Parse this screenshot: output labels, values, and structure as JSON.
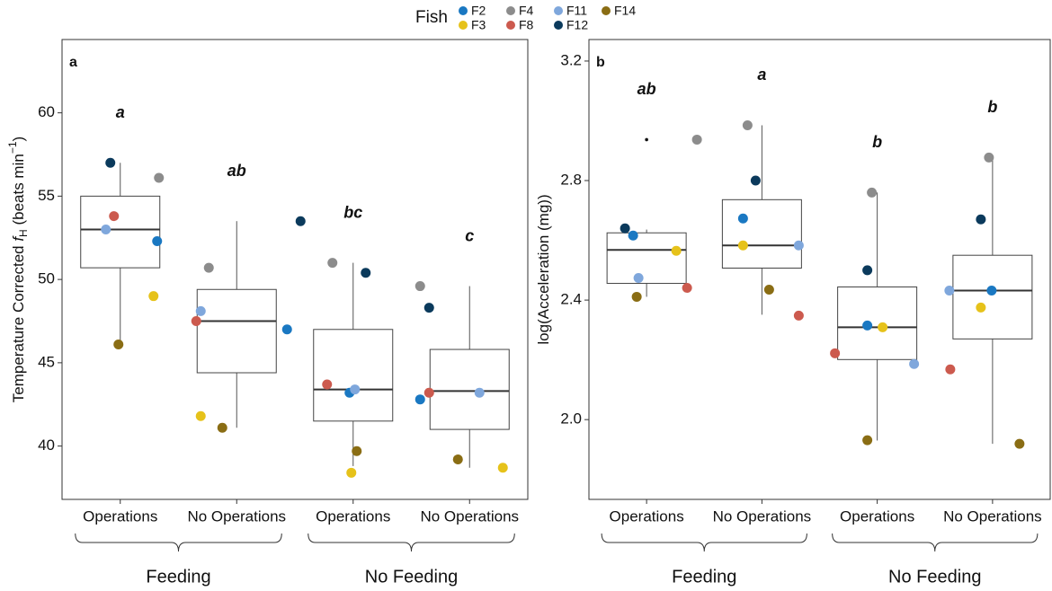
{
  "legend": {
    "title": "Fish"
  },
  "chart_data": [
    {
      "type": "box",
      "panel": "a",
      "ylabel": [
        "Temperature Corrected ",
        "f",
        "H",
        " (beats min",
        "−1",
        ")"
      ],
      "categories": [
        "Operations",
        "No Operations",
        "Operations",
        "No Operations"
      ],
      "groups": [
        "Feeding",
        "No Feeding"
      ],
      "letters": [
        "a",
        "ab",
        "bc",
        "c"
      ],
      "ylim": [
        36.8,
        64.4
      ],
      "yticks": [
        40,
        45,
        50,
        55,
        60
      ],
      "boxes": [
        {
          "whislo": 46.1,
          "q1": 50.7,
          "med": 53.0,
          "q3": 55.0,
          "whishi": 57.0
        },
        {
          "whislo": 41.1,
          "q1": 44.4,
          "med": 47.5,
          "q3": 49.4,
          "whishi": 53.5
        },
        {
          "whislo": 38.8,
          "q1": 41.5,
          "med": 43.4,
          "q3": 47.0,
          "whishi": 51.0
        },
        {
          "whislo": 38.7,
          "q1": 41.0,
          "med": 43.3,
          "q3": 45.8,
          "whishi": 49.6
        }
      ],
      "series": [
        {
          "name": "F2",
          "color": "#1a78c2",
          "values": [
            52.3,
            47.0,
            43.2,
            42.8
          ]
        },
        {
          "name": "F3",
          "color": "#e6c21a",
          "values": [
            49.0,
            41.8,
            38.4,
            38.7
          ]
        },
        {
          "name": "F4",
          "color": "#8c8c8c",
          "values": [
            56.1,
            50.7,
            51.0,
            49.6
          ]
        },
        {
          "name": "F8",
          "color": "#cc5a4e",
          "values": [
            53.8,
            47.5,
            43.7,
            43.2
          ]
        },
        {
          "name": "F11",
          "color": "#7fa7dc",
          "values": [
            53.0,
            48.1,
            43.4,
            43.2
          ]
        },
        {
          "name": "F12",
          "color": "#0b3a5c",
          "values": [
            57.0,
            53.5,
            50.4,
            48.3
          ]
        },
        {
          "name": "F14",
          "color": "#8a6d14",
          "values": [
            46.1,
            41.1,
            39.7,
            39.2
          ]
        }
      ]
    },
    {
      "type": "box",
      "panel": "b",
      "ylabel": [
        "log(Acceleration (mg))"
      ],
      "categories": [
        "Operations",
        "No Operations",
        "Operations",
        "No Operations"
      ],
      "groups": [
        "Feeding",
        "No Feeding"
      ],
      "letters": [
        "ab",
        "a",
        "b",
        "b"
      ],
      "ylim": [
        1.733,
        3.272
      ],
      "yticks": [
        {
          "value": 2,
          "label": "2.0"
        },
        2.4,
        2.8,
        3.2
      ],
      "boxes": [
        {
          "whislo": 2.411,
          "q1": 2.456,
          "med": 2.568,
          "q3": 2.625,
          "whishi": 2.636
        },
        {
          "whislo": 2.351,
          "q1": 2.507,
          "med": 2.583,
          "q3": 2.736,
          "whishi": 2.985
        },
        {
          "whislo": 1.93,
          "q1": 2.201,
          "med": 2.309,
          "q3": 2.444,
          "whishi": 2.76
        },
        {
          "whislo": 1.919,
          "q1": 2.27,
          "med": 2.432,
          "q3": 2.55,
          "whishi": 2.874
        }
      ],
      "outliers": [
        [
          2.937
        ],
        [],
        [],
        []
      ],
      "series": [
        {
          "name": "F2",
          "color": "#1a78c2",
          "values": [
            2.616,
            2.673,
            2.315,
            2.432
          ]
        },
        {
          "name": "F3",
          "color": "#e6c21a",
          "values": [
            2.565,
            2.583,
            2.309,
            2.375
          ]
        },
        {
          "name": "F4",
          "color": "#8c8c8c",
          "values": [
            2.937,
            2.985,
            2.76,
            2.877
          ]
        },
        {
          "name": "F8",
          "color": "#cc5a4e",
          "values": [
            2.441,
            2.348,
            2.222,
            2.168
          ]
        },
        {
          "name": "F11",
          "color": "#7fa7dc",
          "values": [
            2.474,
            2.583,
            2.186,
            2.432
          ]
        },
        {
          "name": "F12",
          "color": "#0b3a5c",
          "values": [
            2.64,
            2.8,
            2.5,
            2.67
          ]
        },
        {
          "name": "F14",
          "color": "#8a6d14",
          "values": [
            2.411,
            2.435,
            1.931,
            1.919
          ]
        }
      ]
    }
  ]
}
